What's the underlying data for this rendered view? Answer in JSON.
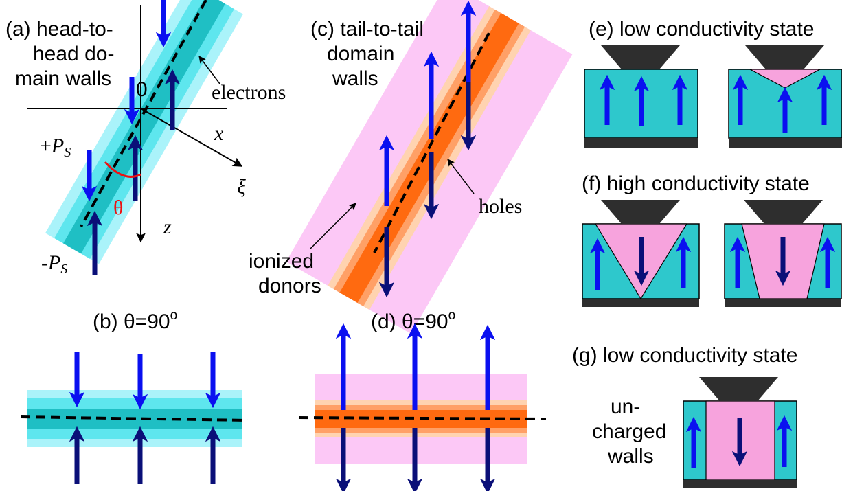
{
  "colors": {
    "electron_band_outer": "#aaf3fa",
    "electron_band_mid": "#5ee6ee",
    "electron_band_core": "#1fbfc4",
    "hole_band_outer": "#ffd3b0",
    "hole_band_mid": "#ffa066",
    "hole_band_core": "#ff6a10",
    "donor_region": "#fcc8f6",
    "teal_domain": "#2ec8cc",
    "pink_domain": "#f7a3dd",
    "arrow_blue": "#0a10f0",
    "arrow_navy": "#0a0f78",
    "tip_dark": "#2e2e2e",
    "theta_red": "#ee1111"
  },
  "panel_a": {
    "title_line1": "(a) head-to-",
    "title_line2": "head do-",
    "title_line3": "main walls",
    "origin": "0",
    "axis_x": "x",
    "axis_z": "z",
    "axis_xi": "ξ",
    "theta": "θ",
    "electrons_label": "electrons",
    "plus_ps_sign": "+",
    "plus_ps_p": "P",
    "plus_ps_sub": "S",
    "minus_ps_sign": "-",
    "minus_ps_p": "P",
    "minus_ps_sub": "S"
  },
  "panel_b": {
    "title": "(b) θ=90",
    "sup": "o"
  },
  "panel_c": {
    "title_line1": "(c) tail-to-tail",
    "title_line2": "domain",
    "title_line3": "walls",
    "holes_label": "holes",
    "donors_line1": "ionized",
    "donors_line2": "donors"
  },
  "panel_d": {
    "title": "(d) θ=90",
    "sup": "o"
  },
  "panel_e": {
    "title": "(e) low conductivity state"
  },
  "panel_f": {
    "title": "(f) high conductivity state"
  },
  "panel_g": {
    "title": "(g) low conductivity state",
    "uncharged_line1": "un-",
    "uncharged_line2": "charged",
    "uncharged_line3": "walls"
  }
}
